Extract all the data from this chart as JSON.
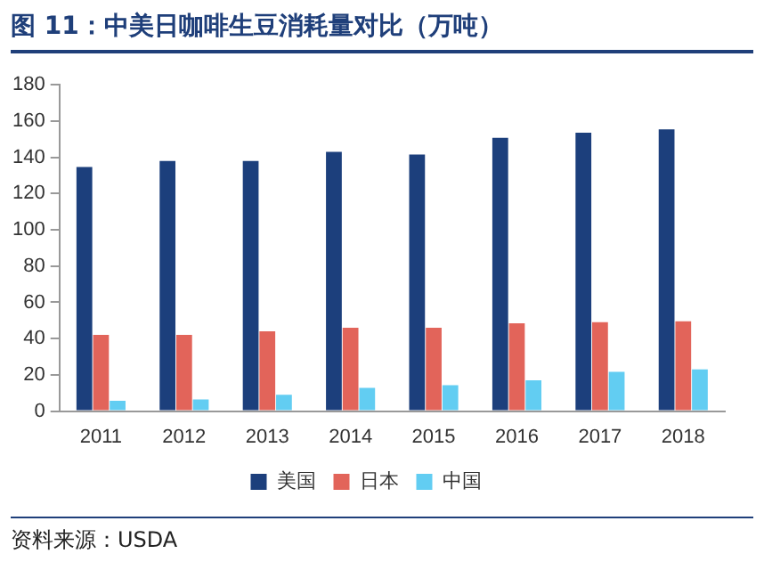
{
  "chart_data": {
    "type": "bar",
    "title": "图 11：中美日咖啡生豆消耗量对比（万吨）",
    "categories": [
      "2011",
      "2012",
      "2013",
      "2014",
      "2015",
      "2016",
      "2017",
      "2018"
    ],
    "series": [
      {
        "name": "美国",
        "color": "#1c3f7c",
        "values": [
          134.7,
          138,
          138,
          143,
          141.5,
          150.7,
          153.6,
          155.4
        ]
      },
      {
        "name": "日本",
        "color": "#e2645a",
        "values": [
          42,
          42,
          44,
          46,
          46,
          48.5,
          49,
          49.5
        ]
      },
      {
        "name": "中国",
        "color": "#62cdf2",
        "values": [
          5.7,
          6.4,
          9,
          12.8,
          14.3,
          17,
          21.7,
          23
        ]
      }
    ],
    "ylim": [
      0,
      180
    ],
    "yticks": [
      0,
      20,
      40,
      60,
      80,
      100,
      120,
      140,
      160,
      180
    ],
    "grid": false,
    "legend": "bottom",
    "annotations": [
      "资料来源：USDA"
    ]
  }
}
